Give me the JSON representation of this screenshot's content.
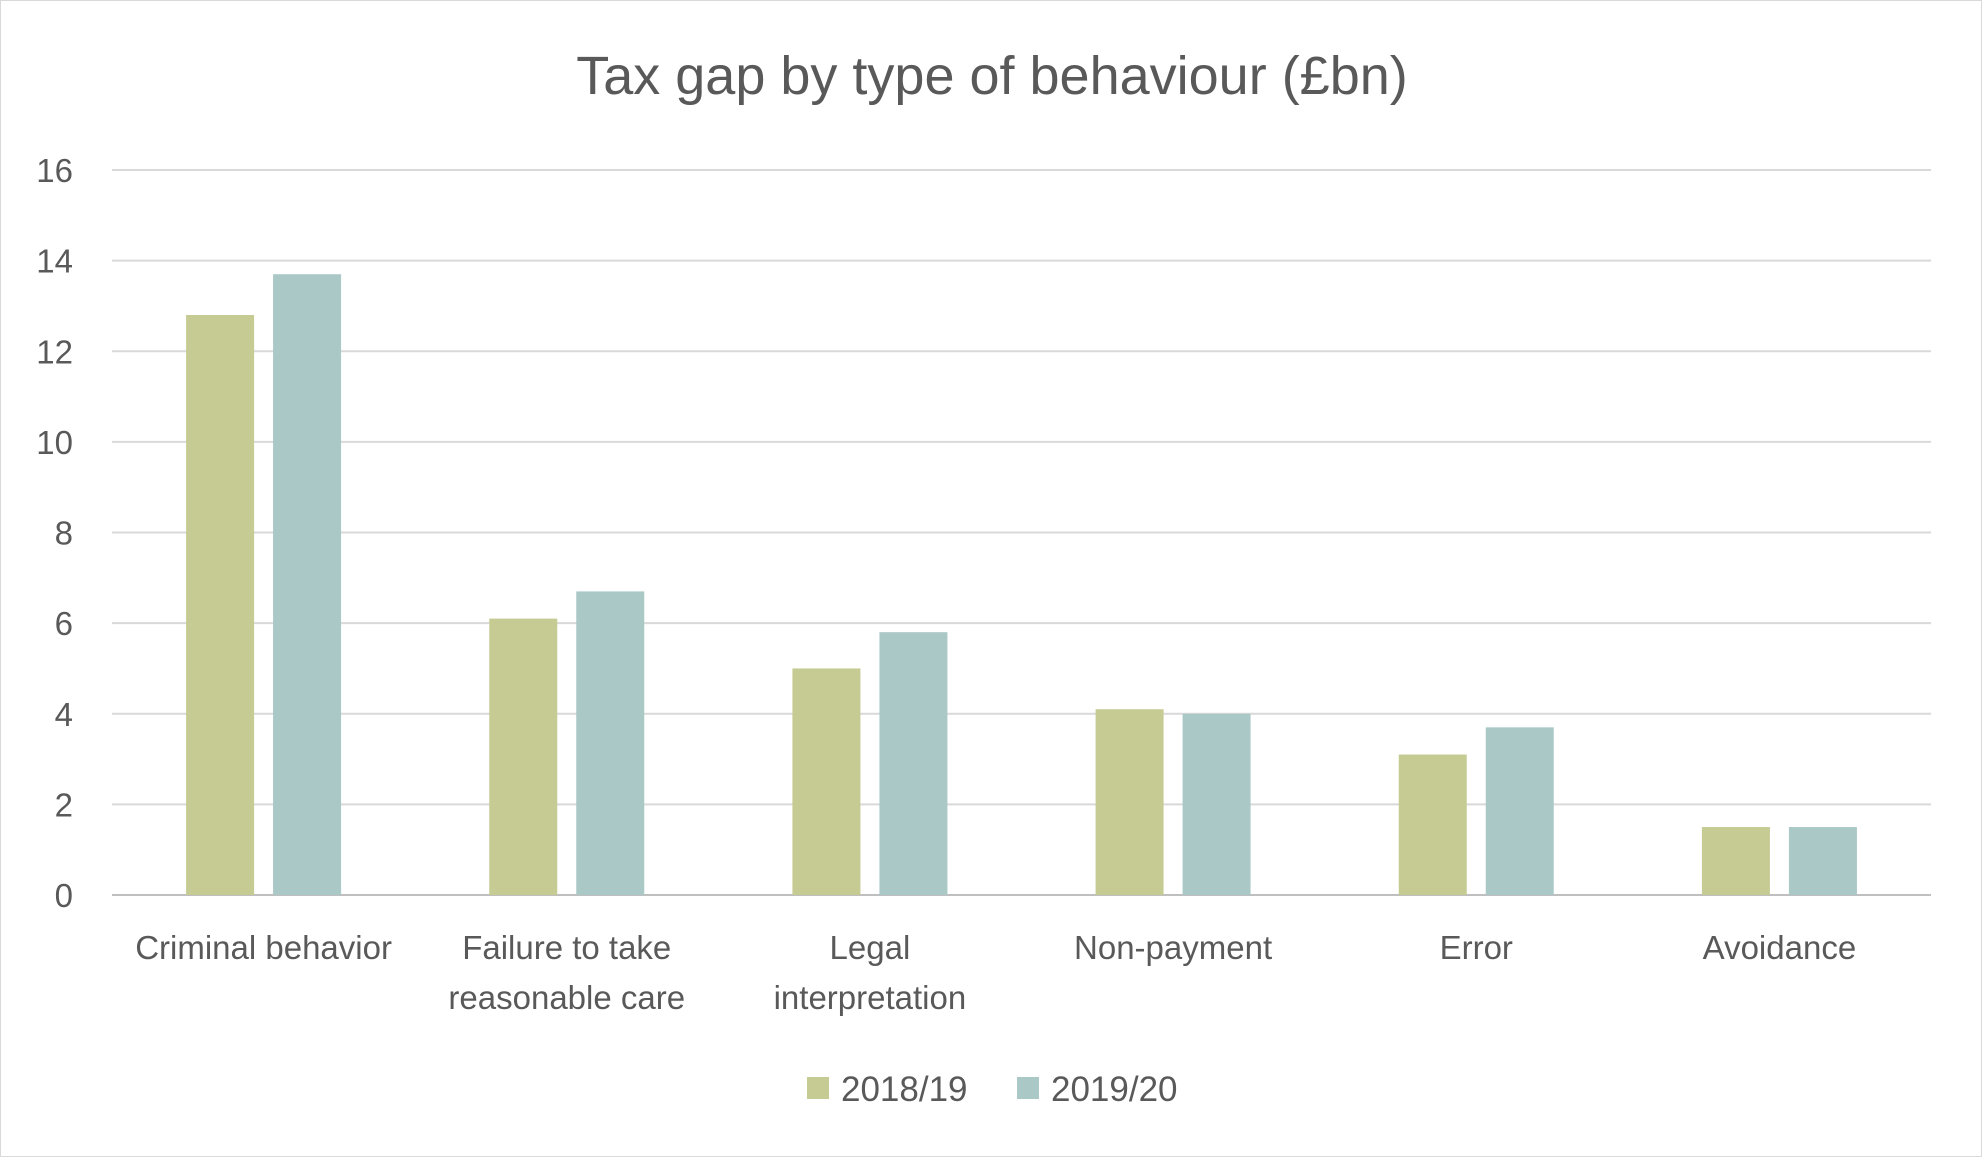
{
  "chart_data": {
    "type": "bar",
    "title": "Tax gap by type of behaviour (£bn)",
    "xlabel": "",
    "ylabel": "",
    "ylim": [
      0,
      16
    ],
    "yticks": [
      0,
      2,
      4,
      6,
      8,
      10,
      12,
      14,
      16
    ],
    "grid": true,
    "legend_position": "bottom",
    "categories": [
      [
        "Criminal behavior"
      ],
      [
        "Failure to take",
        "reasonable care"
      ],
      [
        "Legal",
        "interpretation"
      ],
      [
        "Non-payment"
      ],
      [
        "Error"
      ],
      [
        "Avoidance"
      ]
    ],
    "series": [
      {
        "name": "2018/19",
        "color": "#c6cb93",
        "values": [
          12.8,
          6.1,
          5.0,
          4.1,
          3.1,
          1.5
        ]
      },
      {
        "name": "2019/20",
        "color": "#a9c8c6",
        "values": [
          13.7,
          6.7,
          5.8,
          4.0,
          3.7,
          1.5
        ]
      }
    ]
  }
}
